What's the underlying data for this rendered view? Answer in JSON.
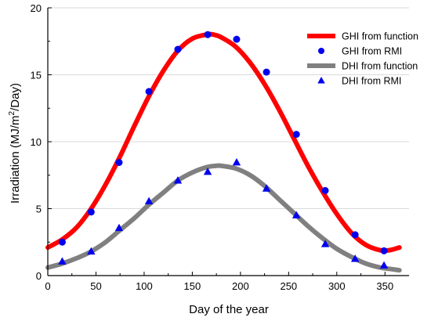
{
  "chart_data": {
    "type": "line",
    "xlabel": "Day of the year",
    "ylabel_main": "Irradiation (MJ/m",
    "ylabel_sup": "2",
    "ylabel_tail": "/Day)",
    "xlim": [
      0,
      375
    ],
    "ylim": [
      0,
      20
    ],
    "xticks": [
      0,
      50,
      100,
      150,
      200,
      250,
      300,
      350
    ],
    "yticks": [
      0,
      5,
      10,
      15,
      20
    ],
    "grid": "horizontal",
    "legend_position": "top-right",
    "series": [
      {
        "name": "GHI from function",
        "kind": "line",
        "color": "#ff0000",
        "x": [
          0,
          15,
          30,
          45,
          60,
          75,
          90,
          105,
          120,
          135,
          150,
          165,
          172,
          180,
          195,
          210,
          225,
          240,
          255,
          270,
          285,
          300,
          315,
          330,
          345,
          355,
          365
        ],
        "y": [
          2.1,
          2.7,
          3.6,
          5.0,
          6.8,
          8.9,
          11.2,
          13.4,
          15.3,
          16.8,
          17.7,
          18.0,
          18.0,
          17.8,
          17.1,
          15.9,
          14.3,
          12.4,
          10.3,
          8.2,
          6.3,
          4.6,
          3.2,
          2.3,
          1.9,
          1.9,
          2.1
        ]
      },
      {
        "name": "GHI from RMI",
        "kind": "marker",
        "marker": "circle",
        "color": "#0000ee",
        "x": [
          15,
          45,
          74,
          105,
          135,
          166,
          196,
          227,
          258,
          288,
          319,
          349
        ],
        "y": [
          2.5,
          4.75,
          8.45,
          13.75,
          16.9,
          18.0,
          17.65,
          15.2,
          10.55,
          6.35,
          3.05,
          1.85
        ]
      },
      {
        "name": "DHI from function",
        "kind": "line",
        "color": "#808080",
        "x": [
          0,
          15,
          30,
          45,
          60,
          75,
          90,
          105,
          120,
          135,
          150,
          165,
          175,
          180,
          195,
          210,
          225,
          240,
          255,
          270,
          285,
          300,
          315,
          330,
          345,
          355,
          365
        ],
        "y": [
          0.6,
          0.9,
          1.3,
          1.8,
          2.5,
          3.4,
          4.3,
          5.3,
          6.2,
          7.1,
          7.7,
          8.1,
          8.2,
          8.2,
          8.0,
          7.5,
          6.7,
          5.7,
          4.7,
          3.7,
          2.8,
          2.0,
          1.4,
          0.9,
          0.6,
          0.5,
          0.4
        ]
      },
      {
        "name": "DHI from RMI",
        "kind": "marker",
        "marker": "triangle",
        "color": "#0000ee",
        "x": [
          15,
          45,
          74,
          105,
          135,
          166,
          196,
          227,
          258,
          288,
          319,
          349
        ],
        "y": [
          1.05,
          1.8,
          3.55,
          5.55,
          7.1,
          7.75,
          8.45,
          6.5,
          4.5,
          2.35,
          1.25,
          0.75
        ]
      }
    ]
  }
}
